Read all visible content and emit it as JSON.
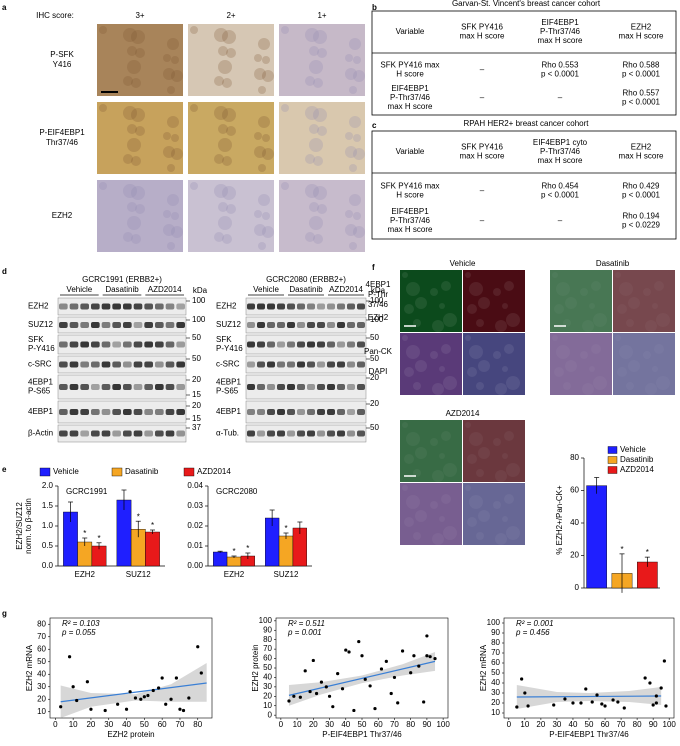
{
  "panel_labels": [
    "a",
    "b",
    "c",
    "d",
    "e",
    "f",
    "g"
  ],
  "panel_a": {
    "score_label": "IHC score:",
    "scores": [
      "3+",
      "2+",
      "1+"
    ],
    "rows": [
      [
        "P-SFK",
        "Y416"
      ],
      [
        "P-EIF4EBP1",
        "Thr37/46"
      ],
      [
        "EZH2"
      ]
    ]
  },
  "panel_b": {
    "title": "Garvan-St. Vincent's breast cancer cohort",
    "header": [
      [
        "Variable"
      ],
      [
        "SFK PY416",
        "max H score"
      ],
      [
        "EIF4EBP1",
        "P-Thr37/46",
        "max H score"
      ],
      [
        "EZH2",
        "max H score"
      ]
    ],
    "rows": [
      [
        [
          "SFK PY416 max",
          "H score"
        ],
        [
          "–"
        ],
        [
          "Rho 0.553",
          "p < 0.0001"
        ],
        [
          "Rho 0.588",
          "p < 0.0001"
        ]
      ],
      [
        [
          "EIF4EBP1",
          "P-Thr37/46",
          "max H score"
        ],
        [
          "–"
        ],
        [
          "–"
        ],
        [
          "Rho 0.557",
          "p < 0.0001"
        ]
      ]
    ]
  },
  "panel_c": {
    "title": "RPAH HER2+ breast cancer cohort",
    "header": [
      [
        "Variable"
      ],
      [
        "SFK PY416",
        "max H score"
      ],
      [
        "EIF4EBP1 cyto",
        "P-Thr37/46",
        "max H score"
      ],
      [
        "EZH2",
        "max H score"
      ]
    ],
    "rows": [
      [
        [
          "SFK PY416 max",
          "H score"
        ],
        [
          "–"
        ],
        [
          "Rho 0.454",
          "p < 0.0001"
        ],
        [
          "Rho 0.429",
          "p < 0.0001"
        ]
      ],
      [
        [
          "EIF4EBP1",
          "P-Thr37/46",
          "max H score"
        ],
        [
          "–"
        ],
        [
          "–"
        ],
        [
          "Rho 0.194",
          "p < 0.0229"
        ]
      ]
    ]
  },
  "panel_d": {
    "kda_label": "kDa",
    "groups": [
      "Vehicle",
      "Dasatinib",
      "AZD2014"
    ],
    "blots": [
      {
        "title": "GCRC1991 (ERBB2+)",
        "rows": [
          [
            "EZH2"
          ],
          [
            "SUZ12"
          ],
          [
            "SFK",
            "P-Y416"
          ],
          [
            "c-SRC"
          ],
          [
            "4EBP1",
            "P-S65"
          ],
          [
            "4EBP1"
          ],
          [
            "β-Actin"
          ]
        ],
        "markers": [
          [
            100
          ],
          [
            100
          ],
          [
            50
          ],
          [
            50
          ],
          [
            20,
            15
          ],
          [
            20,
            15
          ],
          [
            37
          ]
        ]
      },
      {
        "title": "GCRC2080 (ERBB2+)",
        "rows": [
          [
            "EZH2"
          ],
          [
            "SUZ12"
          ],
          [
            "SFK",
            "P-Y416"
          ],
          [
            "c-SRC"
          ],
          [
            "4EBP1",
            "P-S65"
          ],
          [
            "4EBP1"
          ],
          [
            "α-Tub."
          ]
        ],
        "markers": [
          [
            100
          ],
          [
            100
          ],
          [
            50
          ],
          [
            50
          ],
          [
            20
          ],
          [
            20
          ],
          [
            50
          ]
        ]
      }
    ]
  },
  "panel_f": {
    "conditions": [
      "Vehicle",
      "Dasatinib",
      "AZD2014"
    ],
    "channels": [
      {
        "lines": [
          "4EBP1",
          "P-Thr",
          "37/46"
        ],
        "color": "#33bb33"
      },
      {
        "lines": [
          "EZH2"
        ],
        "color": "#e03050"
      },
      {
        "lines": [
          "Pan-CK"
        ],
        "color": "#c040c0"
      },
      {
        "lines": [
          "DAPI"
        ],
        "color": "#3399cc"
      }
    ]
  },
  "chart_data": [
    {
      "type": "bar",
      "title": "GCRC1991",
      "y_label": [
        "EZH2/SUZ12",
        "norm. to β-actin"
      ],
      "categories": [
        "EZH2",
        "SUZ12"
      ],
      "series": [
        {
          "name": "Vehicle",
          "color": "#1f1fff",
          "values": [
            1.35,
            1.65
          ],
          "errors": [
            0.25,
            0.25
          ]
        },
        {
          "name": "Dasatinib",
          "color": "#f5a623",
          "values": [
            0.6,
            0.92
          ],
          "errors": [
            0.1,
            0.2
          ],
          "significance": [
            "*",
            "*"
          ]
        },
        {
          "name": "AZD2014",
          "color": "#e8191a",
          "values": [
            0.5,
            0.85
          ],
          "errors": [
            0.08,
            0.05
          ],
          "significance": [
            "*",
            "*"
          ]
        }
      ],
      "ylim": [
        0,
        2
      ],
      "yticks": [
        {
          "value": 0,
          "label": "0.0"
        },
        0.5,
        {
          "value": 1,
          "label": "1.0"
        },
        1.5,
        {
          "value": 2,
          "label": "2.0"
        }
      ]
    },
    {
      "type": "bar",
      "title": "GCRC2080",
      "categories": [
        "EZH2",
        "SUZ12"
      ],
      "series": [
        {
          "color": "#1f1fff",
          "values": [
            0.007,
            0.024
          ],
          "errors": [
            0.0004,
            0.004
          ]
        },
        {
          "color": "#f5a623",
          "values": [
            0.0045,
            0.015
          ],
          "errors": [
            0.0005,
            0.0015
          ],
          "significance": [
            "*",
            "*"
          ]
        },
        {
          "color": "#e8191a",
          "values": [
            0.005,
            0.019
          ],
          "errors": [
            0.0015,
            0.003
          ],
          "significance": [
            "*",
            null
          ]
        }
      ],
      "ylim": [
        0,
        0.04
      ],
      "yticks": [
        {
          "value": 0,
          "label": "0.00"
        },
        0.01,
        0.02,
        0.03,
        0.04
      ]
    },
    {
      "type": "bar",
      "y_label": "% EZH2+/Pan-CK+",
      "categories": [
        "Vehicle",
        "Dasatinib",
        "AZD2014"
      ],
      "colors": [
        "#1f1fff",
        "#f5a623",
        "#e8191a"
      ],
      "values": [
        63,
        9,
        16
      ],
      "errors": [
        5,
        12,
        3
      ],
      "significance": [
        null,
        "*",
        "*"
      ],
      "ylim": [
        0,
        80
      ],
      "yticks": [
        0,
        20,
        40,
        60,
        80
      ],
      "legend": "top-right"
    },
    {
      "type": "scatter",
      "x_label": "EZH2 protein",
      "y_label": "EZH2 mRNA",
      "annotations": [
        "R² = 0.103",
        "p = 0.055"
      ],
      "x": [
        3,
        8,
        10,
        12,
        18,
        20,
        28,
        35,
        40,
        42,
        45,
        48,
        50,
        52,
        55,
        58,
        60,
        62,
        65,
        68,
        70,
        72,
        75,
        80,
        82
      ],
      "values": [
        14,
        54,
        30,
        19,
        34,
        12,
        11,
        16,
        12,
        26,
        21,
        20,
        22,
        23,
        27,
        29,
        37,
        16,
        20,
        37,
        12,
        11,
        21,
        62,
        41
      ],
      "fit": {
        "x": [
          3,
          85
        ],
        "y": [
          18,
          33
        ]
      },
      "ci": {
        "x": [
          3,
          20,
          45,
          65,
          85
        ],
        "lower": [
          5,
          14,
          19,
          18,
          18
        ],
        "upper": [
          31,
          25,
          24,
          32,
          49
        ]
      },
      "xlim": [
        -3,
        88
      ],
      "xticks": [
        0,
        10,
        20,
        30,
        40,
        50,
        60,
        70,
        80
      ],
      "ylim": [
        5,
        85
      ],
      "yticks": [
        10,
        20,
        30,
        40,
        50,
        60,
        70,
        80
      ]
    },
    {
      "type": "scatter",
      "x_label": "P-EIF4EBP1 Thr37/46",
      "y_label": "EZH2 protein",
      "annotations": [
        "R² = 0.511",
        "p = 0.001"
      ],
      "x": [
        5,
        8,
        12,
        15,
        18,
        20,
        22,
        25,
        28,
        30,
        32,
        35,
        38,
        40,
        42,
        45,
        48,
        50,
        52,
        55,
        58,
        62,
        65,
        68,
        70,
        72,
        75,
        80,
        82,
        85,
        88,
        90,
        92,
        95,
        90
      ],
      "values": [
        15,
        20,
        19,
        47,
        25,
        58,
        23,
        35,
        30,
        20,
        9,
        44,
        28,
        69,
        67,
        5,
        78,
        63,
        38,
        31,
        7,
        49,
        57,
        23,
        40,
        13,
        68,
        45,
        63,
        52,
        14,
        63,
        62,
        60,
        84
      ],
      "fit": {
        "x": [
          5,
          95
        ],
        "y": [
          21,
          57
        ]
      },
      "ci": {
        "x": [
          5,
          25,
          50,
          75,
          95
        ],
        "lower": [
          10,
          22,
          34,
          42,
          47
        ],
        "upper": [
          32,
          35,
          42,
          54,
          67
        ]
      },
      "xlim": [
        -3,
        103
      ],
      "xticks": [
        0,
        10,
        20,
        30,
        40,
        50,
        60,
        70,
        80,
        90,
        100
      ],
      "ylim": [
        -3,
        103
      ],
      "yticks": [
        0,
        10,
        20,
        30,
        40,
        50,
        60,
        70,
        80,
        90,
        100
      ]
    },
    {
      "type": "scatter",
      "x_label": "P-EIF4EBP1 Thr37/46",
      "y_label": "EZH2 mRNA",
      "annotations": [
        "R² = 0.001",
        "p = 0.456"
      ],
      "x": [
        5,
        8,
        10,
        12,
        28,
        35,
        40,
        45,
        48,
        52,
        55,
        58,
        60,
        65,
        68,
        72,
        85,
        88,
        90,
        92,
        95,
        97,
        98,
        92
      ],
      "values": [
        16,
        44,
        30,
        17,
        18,
        24,
        20,
        20,
        34,
        21,
        28,
        19,
        17,
        23,
        21,
        15,
        45,
        40,
        18,
        20,
        35,
        62,
        17,
        27
      ],
      "fit": {
        "x": [
          5,
          95
        ],
        "y": [
          26,
          27
        ]
      },
      "ci": {
        "x": [
          5,
          30,
          50,
          75,
          95
        ],
        "lower": [
          14,
          21,
          22,
          21,
          18
        ],
        "upper": [
          38,
          31,
          30,
          32,
          36
        ]
      },
      "xlim": [
        -3,
        103
      ],
      "xticks": [
        0,
        10,
        20,
        30,
        40,
        50,
        60,
        70,
        80,
        90,
        100
      ],
      "ylim": [
        5,
        105
      ],
      "yticks": [
        10,
        20,
        30,
        40,
        50,
        60,
        70,
        80,
        90,
        100
      ]
    }
  ]
}
